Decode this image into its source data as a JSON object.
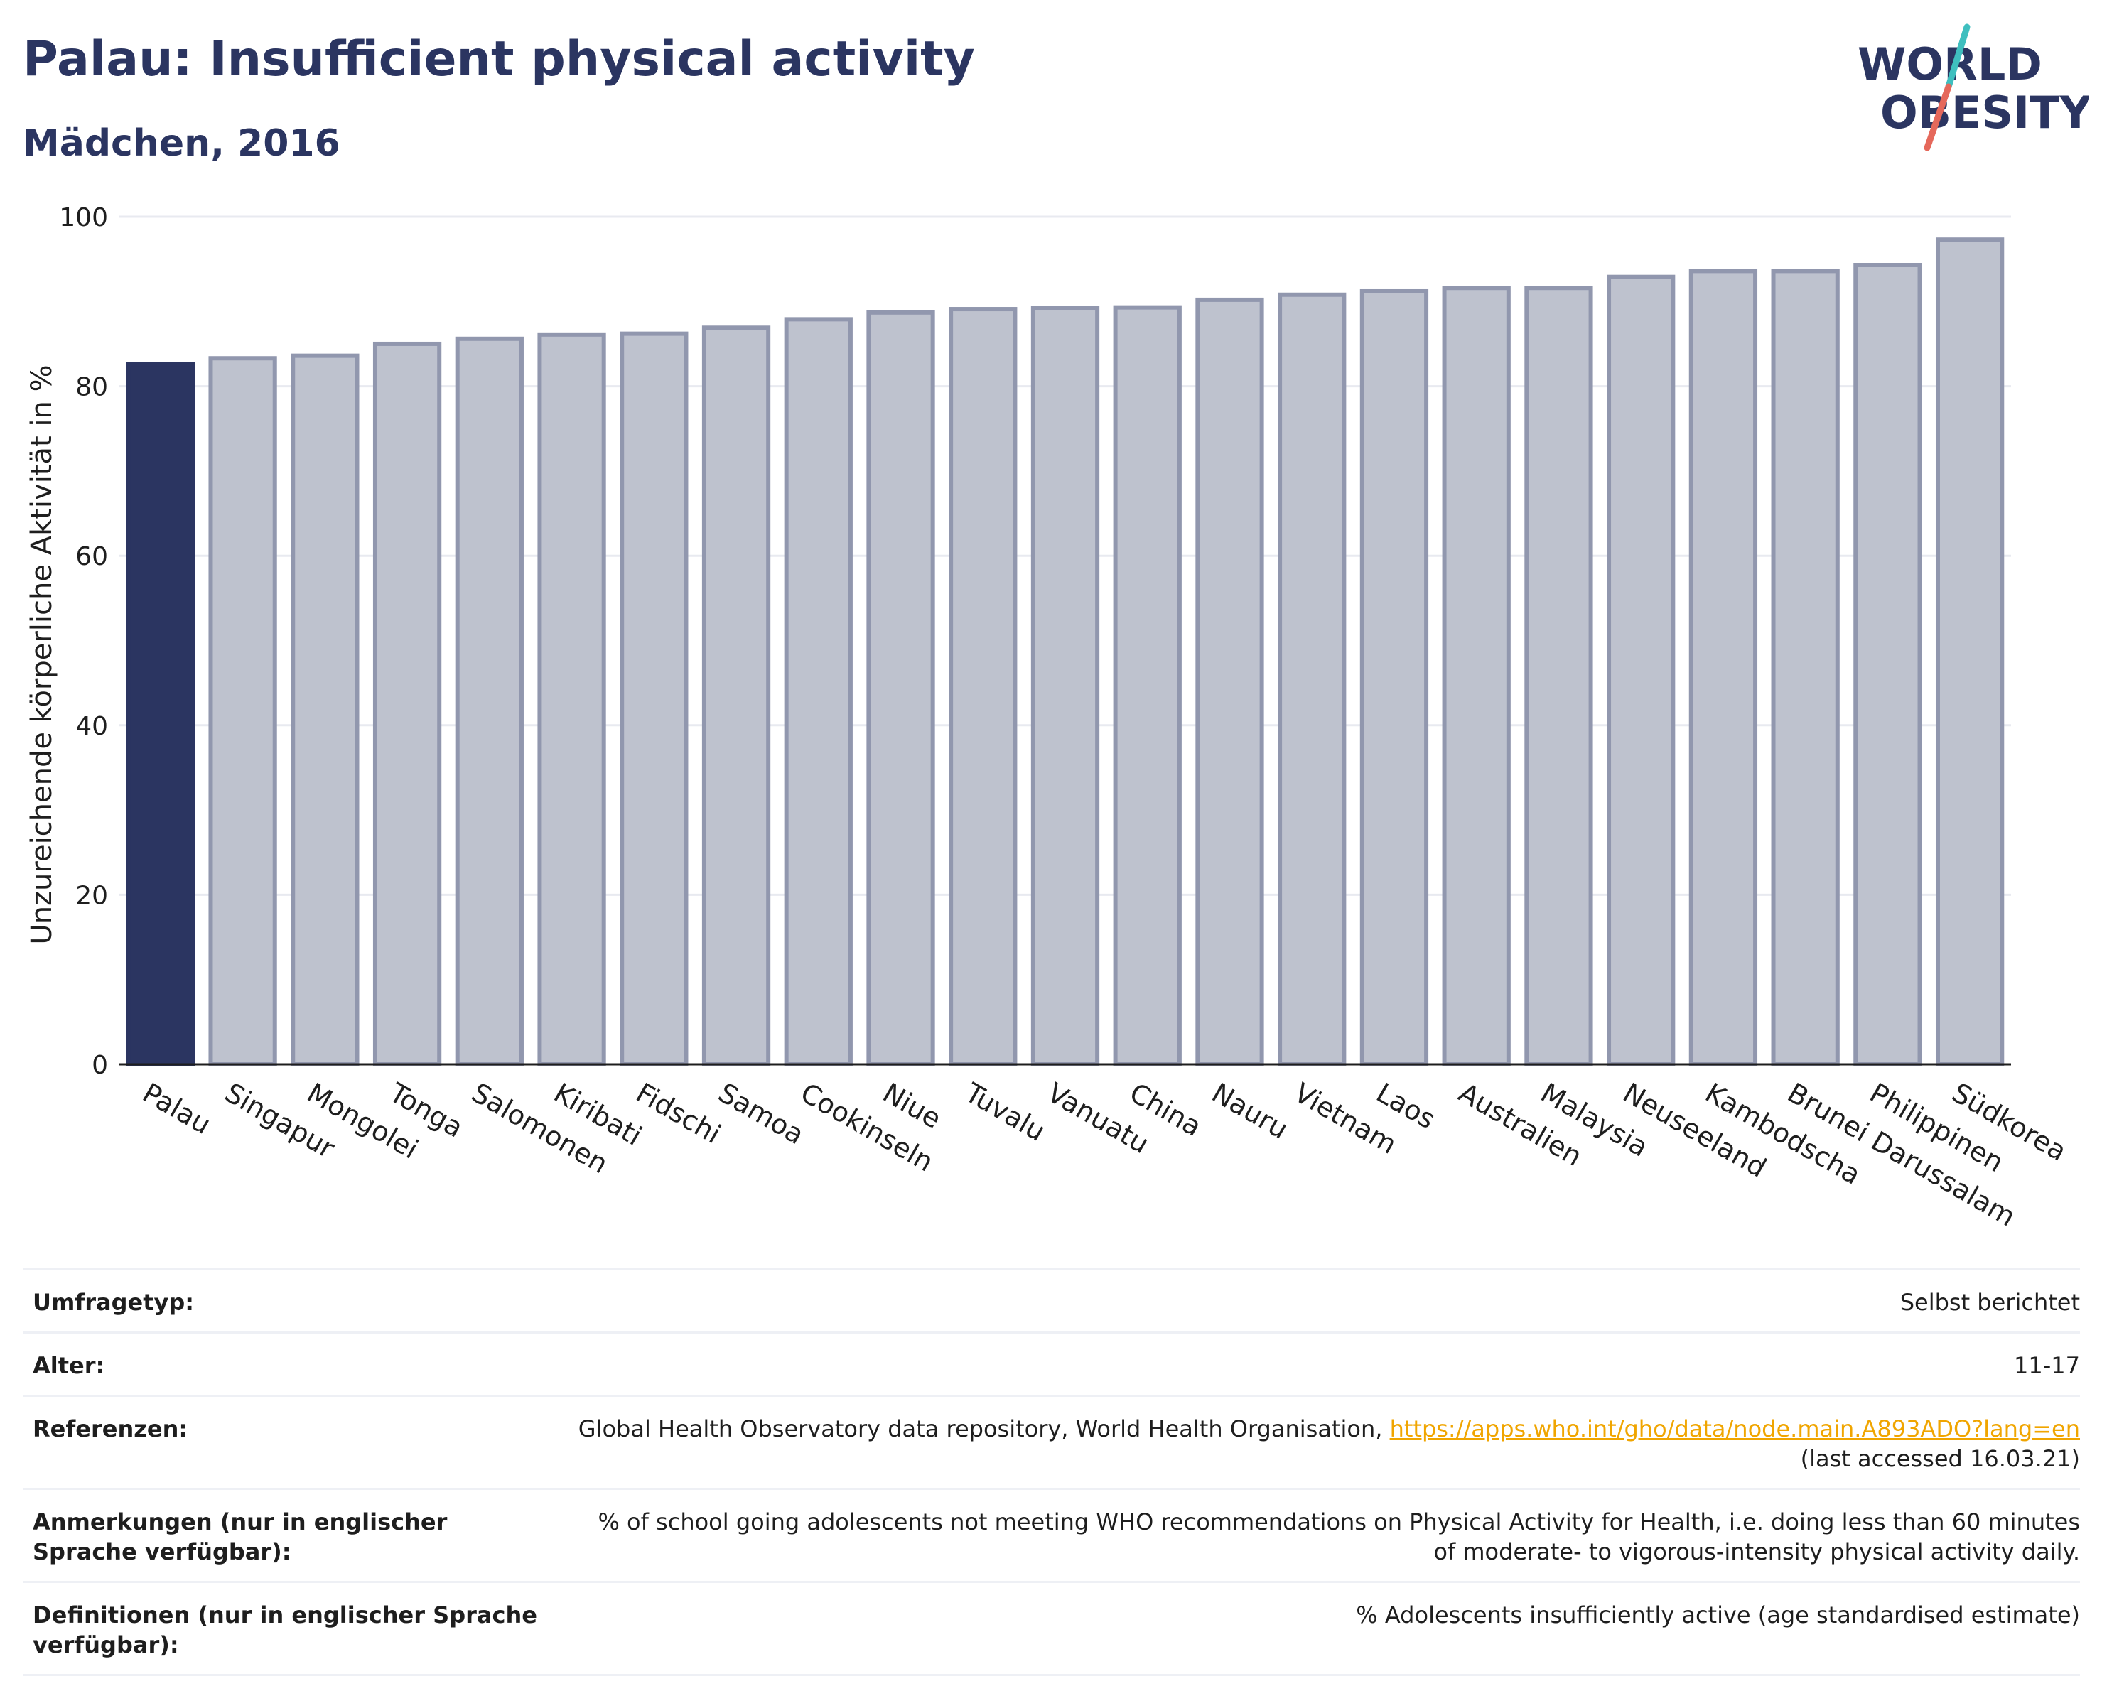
{
  "header": {
    "title": "Palau: Insufficient physical activity",
    "subtitle": "Mädchen, 2016"
  },
  "logo": {
    "line1": "WORLD",
    "line2": "OBESITY",
    "colors": {
      "text": "#2b3561",
      "slash_red": "#e5685b",
      "slash_teal": "#3fbfbf"
    }
  },
  "chart_data": {
    "type": "bar",
    "ylabel": "Unzureichende körperliche Aktivität in %",
    "ylim": [
      0,
      100
    ],
    "yticks": [
      0,
      20,
      40,
      60,
      80,
      100
    ],
    "grid": true,
    "highlight": "Palau",
    "colors": {
      "highlight": "#2b3561",
      "bar_fill": "#bec2ce",
      "bar_stroke": "#9197ae",
      "grid": "#e8eaf0"
    },
    "categories": [
      "Palau",
      "Singapur",
      "Mongolei",
      "Tonga",
      "Salomonen",
      "Kiribati",
      "Fidschi",
      "Samoa",
      "Cookinseln",
      "Niue",
      "Tuvalu",
      "Vanuatu",
      "China",
      "Nauru",
      "Vietnam",
      "Laos",
      "Australien",
      "Malaysia",
      "Neuseeland",
      "Kambodscha",
      "Brunei Darussalam",
      "Philippinen",
      "Südkorea"
    ],
    "values": [
      82.6,
      83.3,
      83.6,
      85.0,
      85.6,
      86.1,
      86.2,
      86.9,
      87.9,
      88.7,
      89.1,
      89.2,
      89.3,
      90.2,
      90.8,
      91.2,
      91.6,
      91.6,
      92.9,
      93.6,
      93.6,
      94.3,
      97.3
    ]
  },
  "meta": {
    "survey_label": "Umfragetyp:",
    "survey_value": "Selbst berichtet",
    "age_label": "Alter:",
    "age_value": "11-17",
    "ref_label": "Referenzen:",
    "ref_text": "Global Health Observatory data repository, World Health Organisation,",
    "ref_link": "https://apps.who.int/gho/data/node.main.A893ADO?lang=en",
    "ref_accessed": "(last accessed 16.03.21)",
    "notes_label": "Anmerkungen (nur in englischer Sprache verfügbar):",
    "notes_value": "% of school going adolescents not meeting WHO recommendations on Physical Activity for Health, i.e. doing less than 60 minutes of moderate- to vigorous-intensity physical activity daily.",
    "def_label": "Definitionen (nur in englischer Sprache verfügbar):",
    "def_value": "% Adolescents insufficiently active (age standardised estimate)"
  }
}
